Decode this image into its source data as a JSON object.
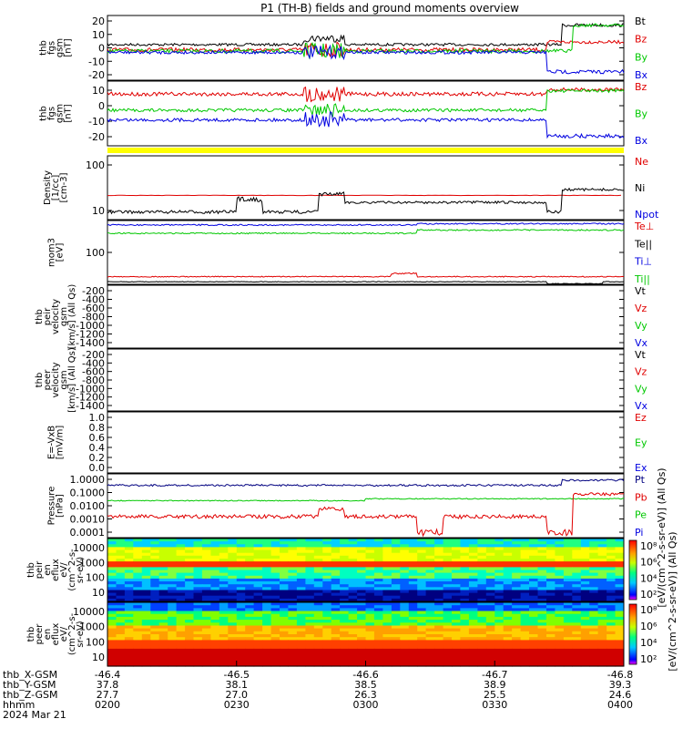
{
  "title": "P1 (TH-B) fields and ground moments overview",
  "colors": {
    "black": "#000000",
    "red": "#e00000",
    "green": "#00c800",
    "blue": "#0000e0",
    "navy": "#000080",
    "yellow": "#ffff00"
  },
  "chart_data": [
    {
      "type": "line",
      "ylabel": [
        "thb",
        "fgs",
        "gsm",
        "[nT]"
      ],
      "yticks": [
        "20",
        "10",
        "0",
        "-10",
        "-20"
      ],
      "ylim": [
        -27,
        27
      ],
      "series": [
        {
          "name": "Bt",
          "color": "#000000"
        },
        {
          "name": "Bz",
          "color": "#e00000"
        },
        {
          "name": "By",
          "color": "#00c800"
        },
        {
          "name": "Bx",
          "color": "#0000e0"
        }
      ]
    },
    {
      "type": "line",
      "ylabel": [
        "thb",
        "fgs",
        "gsm",
        "[nT]"
      ],
      "yticks": [
        "10",
        "0",
        "-10",
        "-20"
      ],
      "ylim": [
        -27,
        15
      ],
      "series": [
        {
          "name": "Bz",
          "color": "#e00000"
        },
        {
          "name": "By",
          "color": "#00c800"
        },
        {
          "name": "Bx",
          "color": "#0000e0"
        }
      ]
    },
    {
      "type": "line",
      "ylabel": [
        "Density",
        "[1/cc]",
        "[cm-3]"
      ],
      "yticks": [
        "100",
        "10"
      ],
      "yscale": "log",
      "series": [
        {
          "name": "Ne",
          "color": "#e00000"
        },
        {
          "name": "Ni",
          "color": "#000000"
        },
        {
          "name": "Npot",
          "color": "#0000e0"
        }
      ]
    },
    {
      "type": "line",
      "ylabel": [
        "mom3",
        "[eV]"
      ],
      "yticks": [
        "100"
      ],
      "yscale": "log",
      "series": [
        {
          "name": "Te⊥",
          "color": "#e00000"
        },
        {
          "name": "Te||",
          "color": "#000000"
        },
        {
          "name": "Ti⊥",
          "color": "#0000e0"
        },
        {
          "name": "Ti||",
          "color": "#00c800"
        }
      ]
    },
    {
      "type": "line",
      "ylabel": [
        "thb",
        "peir",
        "velocity",
        "gsm",
        "[km/s] (All Qs)"
      ],
      "yticks": [
        "-200",
        "-400",
        "-600",
        "-800",
        "-1000",
        "-1200",
        "-1400"
      ],
      "series": [
        {
          "name": "Vt",
          "color": "#000000"
        },
        {
          "name": "Vz",
          "color": "#e00000"
        },
        {
          "name": "Vy",
          "color": "#00c800"
        },
        {
          "name": "Vx",
          "color": "#0000e0"
        }
      ]
    },
    {
      "type": "line",
      "ylabel": [
        "thb",
        "peer",
        "velocity",
        "gsm",
        "[km/s] (All Qs)"
      ],
      "yticks": [
        "-200",
        "-400",
        "-600",
        "-800",
        "-1000",
        "-1200",
        "-1400"
      ],
      "series": [
        {
          "name": "Vt",
          "color": "#000000"
        },
        {
          "name": "Vz",
          "color": "#e00000"
        },
        {
          "name": "Vy",
          "color": "#00c800"
        },
        {
          "name": "Vx",
          "color": "#0000e0"
        }
      ]
    },
    {
      "type": "line",
      "ylabel": [
        "E=-VxB",
        "[mV/m]"
      ],
      "yticks": [
        "1.0",
        "0.8",
        "0.6",
        "0.4",
        "0.2",
        "0.0"
      ],
      "series": [
        {
          "name": "Ez",
          "color": "#e00000"
        },
        {
          "name": "Ey",
          "color": "#00c800"
        },
        {
          "name": "Ex",
          "color": "#0000e0"
        }
      ]
    },
    {
      "type": "line",
      "ylabel": [
        "Pressure",
        "[nPa]"
      ],
      "yticks": [
        "1.0000",
        "0.1000",
        "0.0100",
        "0.0010",
        "0.0001"
      ],
      "yscale": "log",
      "series": [
        {
          "name": "Pt",
          "color": "#000080"
        },
        {
          "name": "Pb",
          "color": "#e00000"
        },
        {
          "name": "Pe",
          "color": "#00c800"
        },
        {
          "name": "Pi",
          "color": "#0000e0"
        }
      ]
    },
    {
      "type": "heatmap",
      "ylabel": [
        "thb",
        "peir",
        "en",
        "eflux",
        "eV/",
        "(cm^2-s-",
        "sr-eV)"
      ],
      "yticks": [
        "10000",
        "1000",
        "100",
        "10"
      ],
      "colorbar_ticks": [
        "10⁸",
        "10⁶",
        "10⁴",
        "10²"
      ],
      "colorbar_label": "[eV/(cm^2-s-sr-eV)] (All Qs)"
    },
    {
      "type": "heatmap",
      "ylabel": [
        "thb",
        "peer",
        "en",
        "eflux",
        "eV/",
        "(cm^2-s-",
        "sr-eV)"
      ],
      "yticks": [
        "10000",
        "1000",
        "100",
        "10"
      ],
      "colorbar_ticks": [
        "10⁸",
        "10⁶",
        "10⁴",
        "10²"
      ],
      "colorbar_label": "[eV/(cm^2-s-sr-eV)] (All Qs)"
    }
  ],
  "xaxis": {
    "row_labels": [
      "thb_X-GSM",
      "thb_Y-GSM",
      "thb_Z-GSM",
      "hhmm",
      "2024 Mar 21"
    ],
    "columns": [
      [
        "-46.4",
        "37.8",
        "27.7",
        "0200"
      ],
      [
        "-46.5",
        "38.1",
        "27.0",
        "0230"
      ],
      [
        "-46.6",
        "38.5",
        "26.3",
        "0300"
      ],
      [
        "-46.7",
        "38.9",
        "25.5",
        "0330"
      ],
      [
        "-46.8",
        "39.3",
        "24.6",
        "0400"
      ]
    ]
  }
}
